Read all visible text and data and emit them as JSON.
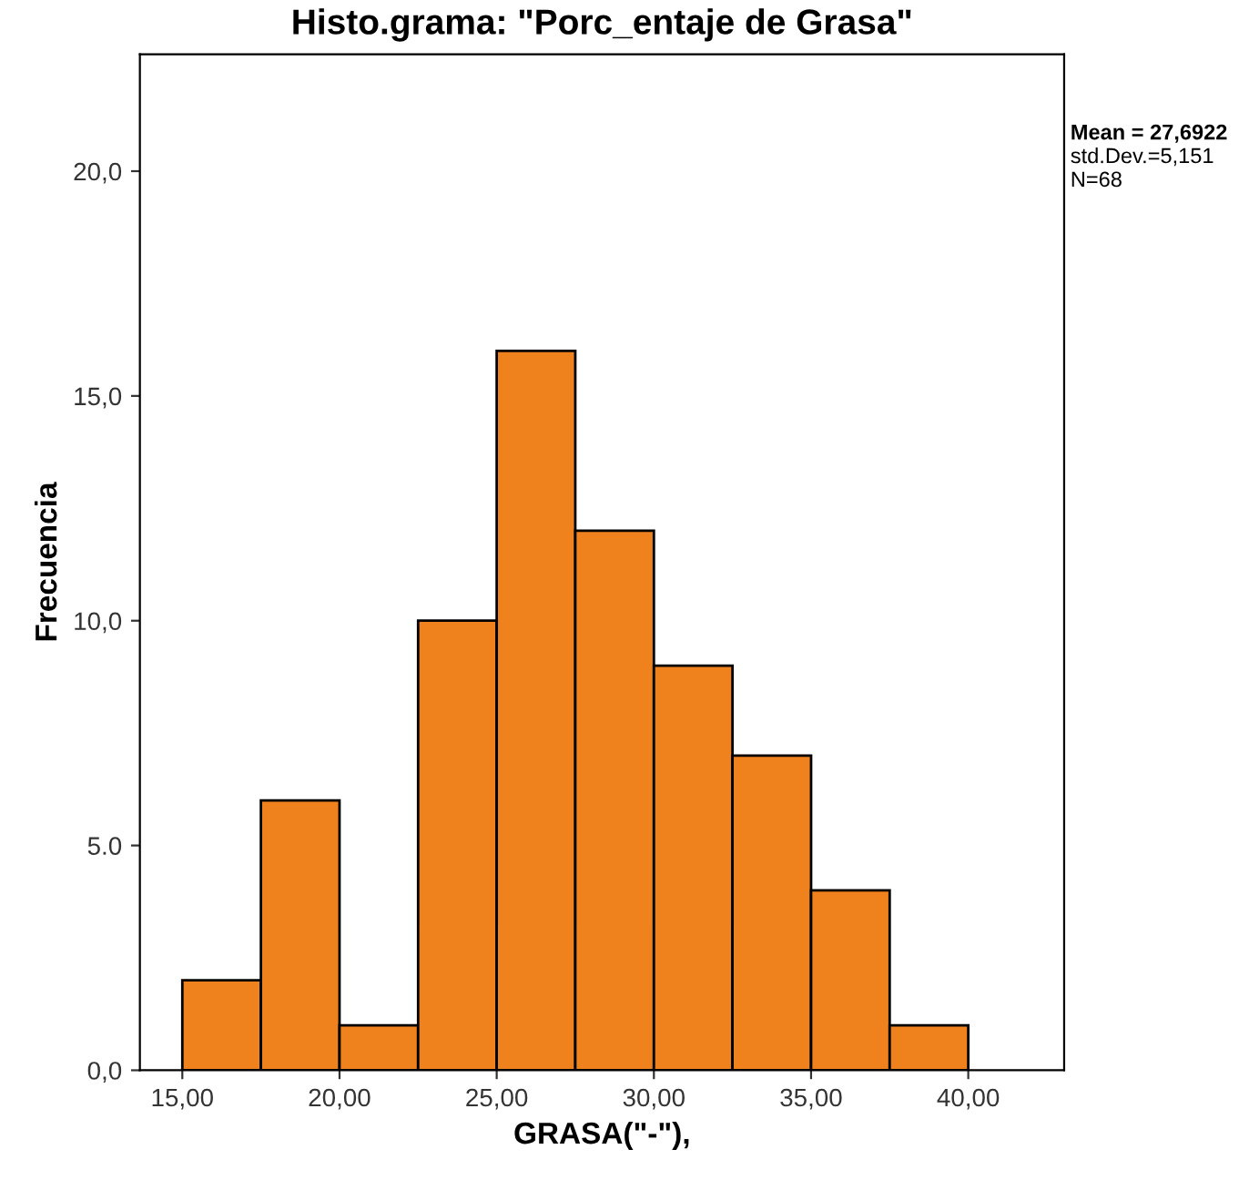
{
  "chart_data": {
    "type": "histogram",
    "title": "Histo.grama: \"Porc_entaje de Grasa\"",
    "xlabel": "GRASA(\"-\"),",
    "ylabel": "Frecuencia",
    "bins": [
      15,
      17.5,
      20,
      22.5,
      25,
      27.5,
      30,
      32.5,
      35,
      37.5,
      40
    ],
    "values": [
      2,
      6,
      1,
      10,
      16,
      12,
      9,
      7,
      4,
      1
    ],
    "color": "#f0821e",
    "xlim": [
      13.65,
      43.05
    ],
    "ylim": [
      0,
      22.6
    ],
    "xticks": [
      {
        "value": 15,
        "label": "15,00"
      },
      {
        "value": 20,
        "label": "20,00"
      },
      {
        "value": 25,
        "label": "25,00"
      },
      {
        "value": 30,
        "label": "30,00"
      },
      {
        "value": 35,
        "label": "35,00"
      },
      {
        "value": 40,
        "label": "40,00"
      }
    ],
    "yticks": [
      {
        "value": 0,
        "label": "0,0"
      },
      {
        "value": 5,
        "label": "5.0"
      },
      {
        "value": 10,
        "label": "10,0"
      },
      {
        "value": 15,
        "label": "15,0"
      },
      {
        "value": 20,
        "label": "20,0"
      }
    ],
    "annotations": [
      "Mean = 27,6922",
      "std.Dev.=5,151",
      "N=68"
    ],
    "grid": false
  }
}
